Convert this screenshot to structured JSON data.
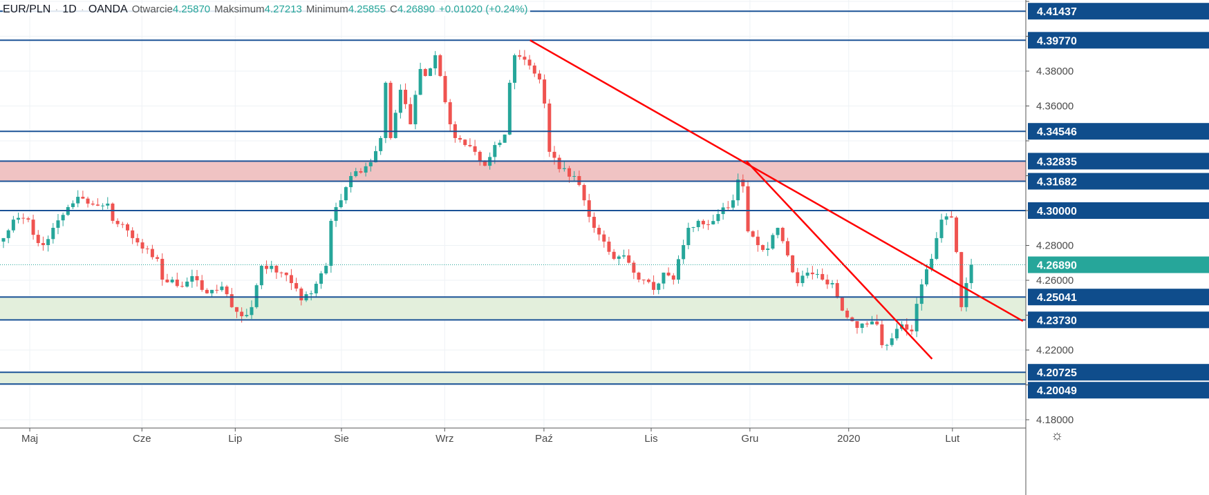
{
  "header": {
    "symbol": "EUR/PLN",
    "interval": "1D",
    "source": "OANDA",
    "open_label": "Otwarcie",
    "open": "4.25870",
    "high_label": "Maksimum",
    "high": "4.27213",
    "low_label": "Minimum",
    "low": "4.25855",
    "close_label": "C",
    "close": "4.26890",
    "change": "+0.01020 (+0.24%)"
  },
  "colors": {
    "up": "#26a69a",
    "down": "#ef5350",
    "level": "#1a5296",
    "label_bg": "#0f4d8c",
    "trend": "#ff0000",
    "resistance_zone": "#f0c3c3",
    "support_zone": "#e3efdc",
    "last_price": "#26a69a"
  },
  "chart_data": {
    "type": "candlestick",
    "title": "EUR/PLN 1D OANDA",
    "ylim": [
      4.175,
      4.421
    ],
    "y_ticks": [
      4.18,
      4.2,
      4.22,
      4.24,
      4.26,
      4.28,
      4.3,
      4.32,
      4.34,
      4.36,
      4.38,
      4.4,
      4.42
    ],
    "num_days": 196,
    "x_labels": [
      {
        "day": 5.3,
        "label": "Maj"
      },
      {
        "day": 27.9,
        "label": "Cze"
      },
      {
        "day": 46.7,
        "label": "Lip"
      },
      {
        "day": 68.1,
        "label": "Sie"
      },
      {
        "day": 88.9,
        "label": "Wrz"
      },
      {
        "day": 108.9,
        "label": "Paź"
      },
      {
        "day": 130.5,
        "label": "Lis"
      },
      {
        "day": 150.4,
        "label": "Gru"
      },
      {
        "day": 170.3,
        "label": "2020"
      },
      {
        "day": 191.2,
        "label": "Lut"
      }
    ],
    "close_keypoints": [
      [
        0,
        4.2842
      ],
      [
        2,
        4.2948
      ],
      [
        5,
        4.2948
      ],
      [
        6,
        4.2861
      ],
      [
        8,
        4.2802
      ],
      [
        10,
        4.2901
      ],
      [
        13,
        4.302
      ],
      [
        15,
        4.3079
      ],
      [
        17,
        4.304
      ],
      [
        19,
        4.3028
      ],
      [
        21,
        4.304
      ],
      [
        22,
        4.2941
      ],
      [
        24,
        4.2921
      ],
      [
        26,
        4.2842
      ],
      [
        28,
        4.2782
      ],
      [
        31,
        4.2723
      ],
      [
        32,
        4.2604
      ],
      [
        34,
        4.2604
      ],
      [
        36,
        4.2564
      ],
      [
        38,
        4.2624
      ],
      [
        40,
        4.2545
      ],
      [
        42,
        4.2545
      ],
      [
        44,
        4.2564
      ],
      [
        46,
        4.2446
      ],
      [
        48,
        4.2394
      ],
      [
        50,
        4.2446
      ],
      [
        52,
        4.2683
      ],
      [
        54,
        4.2683
      ],
      [
        56,
        4.2644
      ],
      [
        58,
        4.2584
      ],
      [
        60,
        4.2485
      ],
      [
        62,
        4.2525
      ],
      [
        65,
        4.2683
      ],
      [
        66,
        4.2941
      ],
      [
        68,
        4.3059
      ],
      [
        70,
        4.3198
      ],
      [
        72,
        4.3218
      ],
      [
        74,
        4.3277
      ],
      [
        76,
        4.3416
      ],
      [
        77,
        4.3733
      ],
      [
        78,
        4.3416
      ],
      [
        80,
        4.3693
      ],
      [
        82,
        4.3495
      ],
      [
        84,
        4.3812
      ],
      [
        85,
        4.3772
      ],
      [
        87,
        4.3891
      ],
      [
        88,
        4.3772
      ],
      [
        90,
        4.3495
      ],
      [
        91,
        4.3416
      ],
      [
        93,
        4.3376
      ],
      [
        95,
        4.3337
      ],
      [
        97,
        4.3257
      ],
      [
        99,
        4.3376
      ],
      [
        101,
        4.3436
      ],
      [
        102,
        4.3733
      ],
      [
        103,
        4.3891
      ],
      [
        106,
        4.3832
      ],
      [
        108,
        4.3752
      ],
      [
        109,
        4.3614
      ],
      [
        110,
        4.3337
      ],
      [
        112,
        4.3238
      ],
      [
        115,
        4.3198
      ],
      [
        117,
        4.3059
      ],
      [
        119,
        4.2901
      ],
      [
        121,
        4.2822
      ],
      [
        123,
        4.2723
      ],
      [
        125,
        4.2743
      ],
      [
        127,
        4.2644
      ],
      [
        129,
        4.2604
      ],
      [
        131,
        4.2545
      ],
      [
        133,
        4.2644
      ],
      [
        135,
        4.2604
      ],
      [
        137,
        4.2802
      ],
      [
        138,
        4.2901
      ],
      [
        140,
        4.2941
      ],
      [
        142,
        4.2921
      ],
      [
        144,
        4.298
      ],
      [
        147,
        4.3059
      ],
      [
        148,
        4.3178
      ],
      [
        149,
        4.3139
      ],
      [
        150,
        4.2881
      ],
      [
        152,
        4.2802
      ],
      [
        154,
        4.2782
      ],
      [
        156,
        4.2901
      ],
      [
        158,
        4.2743
      ],
      [
        160,
        4.2584
      ],
      [
        162,
        4.2644
      ],
      [
        165,
        4.2604
      ],
      [
        167,
        4.2584
      ],
      [
        169,
        4.2426
      ],
      [
        172,
        4.2327
      ],
      [
        174,
        4.2347
      ],
      [
        176,
        4.2347
      ],
      [
        177,
        4.2228
      ],
      [
        179,
        4.2267
      ],
      [
        181,
        4.2347
      ],
      [
        183,
        4.2307
      ],
      [
        184,
        4.2465
      ],
      [
        186,
        4.2663
      ],
      [
        187,
        4.2723
      ],
      [
        188,
        4.2842
      ],
      [
        189,
        4.2948
      ],
      [
        191,
        4.296
      ],
      [
        192,
        4.2762
      ],
      [
        193,
        4.2446
      ],
      [
        194,
        4.2584
      ],
      [
        195,
        4.2689
      ]
    ],
    "levels": [
      "4.41437",
      "4.39770",
      "4.34546",
      "4.32835",
      "4.31682",
      "4.30000",
      "4.25041",
      "4.23730",
      "4.20725",
      "4.20049"
    ],
    "zones": [
      {
        "from": 4.31682,
        "to": 4.32835,
        "kind": "resistance"
      },
      {
        "from": 4.2373,
        "to": 4.25041,
        "kind": "support"
      },
      {
        "from": 4.20049,
        "to": 4.20725,
        "kind": "support"
      }
    ],
    "trendlines": [
      {
        "from": [
          106.1,
          4.3977
        ],
        "to": [
          205.4,
          4.2366
        ]
      },
      {
        "from": [
          149.7,
          4.3283
        ],
        "to": [
          187.1,
          4.2149
        ]
      }
    ],
    "last_price": "4.26890"
  }
}
